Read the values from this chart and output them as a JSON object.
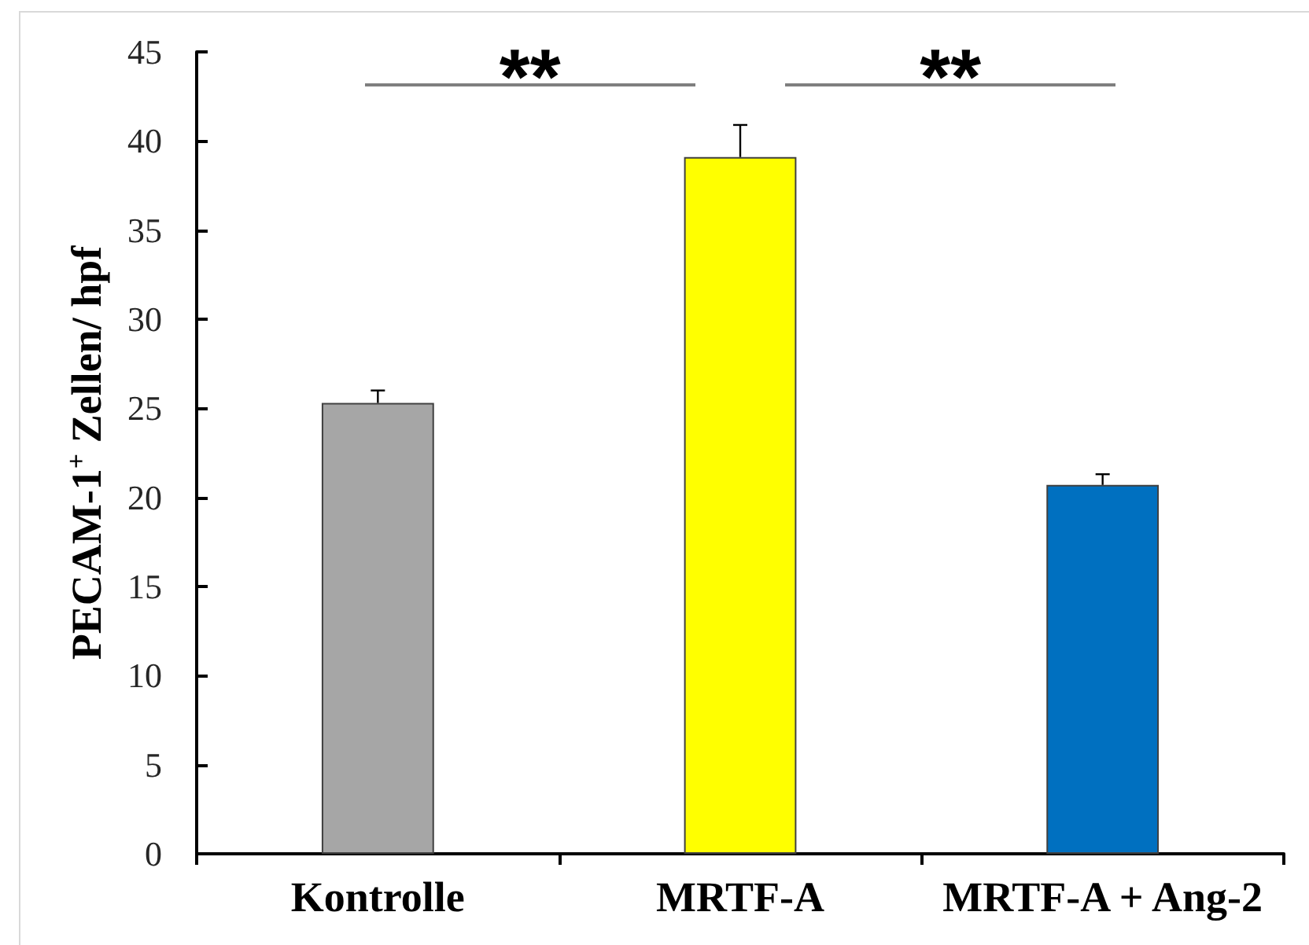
{
  "chart_data": {
    "type": "bar",
    "ylabel": "PECAM-1$^{+}$ Zellen/ hpf",
    "categories": [
      "Kontrolle",
      "MRTF-A",
      "MRTF-A + Ang-2"
    ],
    "values": [
      25.3,
      39.1,
      20.7
    ],
    "colors": [
      "#a6a6a6",
      "#ffff00",
      "#0070c0"
    ],
    "errors": [
      [
        25.3,
        26.0
      ],
      [
        39.1,
        40.9
      ],
      [
        20.7,
        21.3
      ]
    ],
    "ylim": [
      0,
      45
    ],
    "yticks": [
      0,
      5,
      10,
      15,
      20,
      25,
      30,
      35,
      40,
      45
    ],
    "annotations": [
      "**",
      "**"
    ]
  }
}
